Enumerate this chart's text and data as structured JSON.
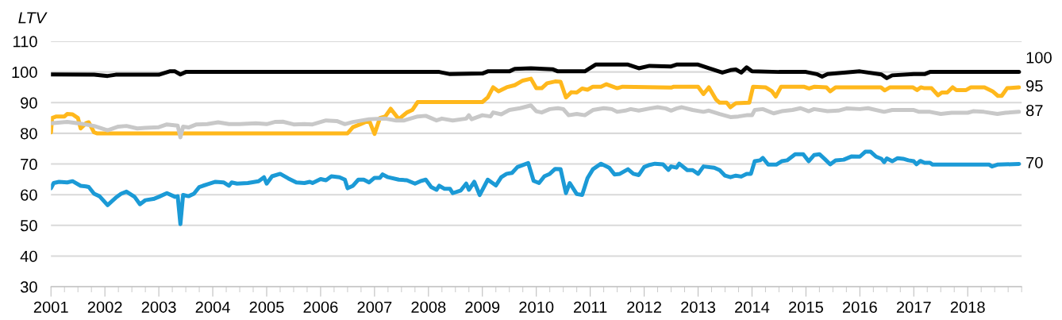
{
  "chart_data": {
    "type": "line",
    "ylabel": "LTV",
    "xlim": [
      2001,
      2019
    ],
    "ylim": [
      30,
      110
    ],
    "yticks": [
      30,
      40,
      50,
      60,
      70,
      80,
      90,
      100,
      110
    ],
    "xticks": [
      2001,
      2002,
      2003,
      2004,
      2005,
      2006,
      2007,
      2008,
      2009,
      2010,
      2011,
      2012,
      2013,
      2014,
      2015,
      2016,
      2017,
      2018,
      {
        "value": 2019,
        "label": null
      },
      {
        "value": 2001.25,
        "label": null
      },
      {
        "value": 2001.5,
        "label": null
      },
      {
        "value": 2001.75,
        "label": null
      },
      {
        "value": 2002.25,
        "label": null
      },
      {
        "value": 2002.5,
        "label": null
      },
      {
        "value": 2002.75,
        "label": null
      },
      {
        "value": 2003.25,
        "label": null
      },
      {
        "value": 2003.5,
        "label": null
      },
      {
        "value": 2003.75,
        "label": null
      },
      {
        "value": 2004.25,
        "label": null
      },
      {
        "value": 2004.5,
        "label": null
      },
      {
        "value": 2004.75,
        "label": null
      },
      {
        "value": 2005.25,
        "label": null
      },
      {
        "value": 2005.5,
        "label": null
      },
      {
        "value": 2005.75,
        "label": null
      },
      {
        "value": 2006.25,
        "label": null
      },
      {
        "value": 2006.5,
        "label": null
      },
      {
        "value": 2006.75,
        "label": null
      },
      {
        "value": 2007.25,
        "label": null
      },
      {
        "value": 2007.5,
        "label": null
      },
      {
        "value": 2007.75,
        "label": null
      },
      {
        "value": 2008.25,
        "label": null
      },
      {
        "value": 2008.5,
        "label": null
      },
      {
        "value": 2008.75,
        "label": null
      },
      {
        "value": 2009.25,
        "label": null
      },
      {
        "value": 2009.5,
        "label": null
      },
      {
        "value": 2009.75,
        "label": null
      },
      {
        "value": 2010.25,
        "label": null
      },
      {
        "value": 2010.5,
        "label": null
      },
      {
        "value": 2010.75,
        "label": null
      },
      {
        "value": 2011.25,
        "label": null
      },
      {
        "value": 2011.5,
        "label": null
      },
      {
        "value": 2011.75,
        "label": null
      },
      {
        "value": 2012.25,
        "label": null
      },
      {
        "value": 2012.5,
        "label": null
      },
      {
        "value": 2012.75,
        "label": null
      },
      {
        "value": 2013.25,
        "label": null
      },
      {
        "value": 2013.5,
        "label": null
      },
      {
        "value": 2013.75,
        "label": null
      },
      {
        "value": 2014.25,
        "label": null
      },
      {
        "value": 2014.5,
        "label": null
      },
      {
        "value": 2014.75,
        "label": null
      },
      {
        "value": 2015.25,
        "label": null
      },
      {
        "value": 2015.5,
        "label": null
      },
      {
        "value": 2015.75,
        "label": null
      },
      {
        "value": 2016.25,
        "label": null
      },
      {
        "value": 2016.5,
        "label": null
      },
      {
        "value": 2016.75,
        "label": null
      },
      {
        "value": 2017.25,
        "label": null
      },
      {
        "value": 2017.5,
        "label": null
      },
      {
        "value": 2017.75,
        "label": null
      },
      {
        "value": 2018.25,
        "label": null
      },
      {
        "value": 2018.5,
        "label": null
      },
      {
        "value": 2018.75,
        "label": null
      }
    ],
    "grid": "y",
    "line_style": "solid",
    "marker": "none",
    "series": [
      {
        "color": "#000000",
        "x": [
          2001.0,
          2001.8,
          2002.05,
          2002.2,
          2003.0,
          2003.2,
          2003.3,
          2003.4,
          2003.5,
          2008.2,
          2008.4,
          2009.0,
          2009.1,
          2009.5,
          2009.6,
          2009.9,
          2010.3,
          2010.4,
          2010.9,
          2011.1,
          2011.7,
          2011.9,
          2012.1,
          2012.5,
          2012.6,
          2013.0,
          2013.2,
          2013.45,
          2013.6,
          2013.7,
          2013.8,
          2013.9,
          2014.0,
          2014.5,
          2015.0,
          2015.2,
          2015.3,
          2015.4,
          2016.0,
          2016.4,
          2016.5,
          2016.6,
          2017.0,
          2017.2,
          2017.3,
          2018.95
        ],
        "values": [
          99.2,
          99.1,
          98.7,
          99.1,
          99.1,
          100.2,
          100.2,
          99.2,
          100,
          100,
          99.3,
          99.5,
          100.2,
          100.2,
          101,
          101.2,
          100.9,
          100.2,
          100.2,
          102.4,
          102.4,
          101.2,
          102,
          101.8,
          102.4,
          102.4,
          101.2,
          99.8,
          100.6,
          100.8,
          99.8,
          101.5,
          100.2,
          100,
          100,
          99.3,
          98.5,
          99.3,
          100.2,
          99.2,
          98,
          98.9,
          99.3,
          99.3,
          100,
          100
        ]
      },
      {
        "color": "#ffb81c",
        "x": [
          2001.0,
          2001.02,
          2001.1,
          2001.25,
          2001.3,
          2001.4,
          2001.5,
          2001.55,
          2001.65,
          2001.7,
          2001.8,
          2001.85,
          2006.5,
          2006.6,
          2006.73,
          2006.9,
          2007.0,
          2007.1,
          2007.2,
          2007.3,
          2007.45,
          2007.6,
          2007.7,
          2007.8,
          2009.0,
          2009.1,
          2009.2,
          2009.3,
          2009.45,
          2009.6,
          2009.75,
          2009.9,
          2010.0,
          2010.1,
          2010.2,
          2010.35,
          2010.45,
          2010.55,
          2010.65,
          2010.75,
          2010.85,
          2010.95,
          2011.05,
          2011.2,
          2011.3,
          2011.45,
          2011.5,
          2011.6,
          2012.5,
          2012.55,
          2013.0,
          2013.1,
          2013.2,
          2013.33,
          2013.4,
          2013.53,
          2013.6,
          2013.7,
          2013.95,
          2014.02,
          2014.25,
          2014.37,
          2014.44,
          2014.54,
          2014.96,
          2015.06,
          2015.16,
          2015.38,
          2015.45,
          2015.55,
          2016.39,
          2016.46,
          2016.56,
          2016.98,
          2017.06,
          2017.13,
          2017.2,
          2017.33,
          2017.45,
          2017.52,
          2017.62,
          2017.72,
          2017.79,
          2017.97,
          2018.06,
          2018.31,
          2018.46,
          2018.56,
          2018.63,
          2018.73,
          2018.95
        ],
        "values": [
          80.3,
          85,
          85.5,
          85.5,
          86.3,
          86.2,
          85,
          81.6,
          83.3,
          83.6,
          80.3,
          80,
          80,
          82,
          82.9,
          84.2,
          79.8,
          85,
          85.5,
          88,
          84.6,
          86.8,
          87.6,
          90.2,
          90.2,
          91.7,
          95,
          93.7,
          95,
          95.7,
          97.2,
          97.8,
          94.7,
          94.7,
          96.3,
          96.9,
          96.8,
          91.7,
          93.4,
          93.3,
          94.6,
          94.2,
          95.2,
          95.2,
          96,
          95,
          94.7,
          95.2,
          94.9,
          95.2,
          95.2,
          92.8,
          95,
          91.1,
          90,
          90,
          88.5,
          89.8,
          90,
          95.2,
          95,
          93.7,
          92,
          95.2,
          95.2,
          94.6,
          95.2,
          95,
          93.7,
          95,
          95,
          94,
          95,
          95,
          94.1,
          95,
          94.7,
          94.7,
          92.4,
          93.3,
          93.3,
          95,
          94.1,
          94.1,
          95,
          95,
          93.7,
          92.2,
          92.2,
          94.7,
          95
        ]
      },
      {
        "color": "#c8c8c8",
        "x": [
          2001.0,
          2001.3,
          2001.5,
          2001.8,
          2002.05,
          2002.25,
          2002.4,
          2002.6,
          2002.75,
          2003.0,
          2003.15,
          2003.35,
          2003.4,
          2003.45,
          2003.55,
          2003.7,
          2003.9,
          2004.1,
          2004.3,
          2004.5,
          2004.8,
          2005.0,
          2005.15,
          2005.3,
          2005.5,
          2005.7,
          2005.85,
          2006.0,
          2006.1,
          2006.3,
          2006.45,
          2006.6,
          2006.9,
          2007.2,
          2007.4,
          2007.55,
          2007.8,
          2007.95,
          2008.15,
          2008.25,
          2008.45,
          2008.7,
          2008.75,
          2008.8,
          2009.0,
          2009.15,
          2009.2,
          2009.35,
          2009.5,
          2009.7,
          2009.9,
          2010.0,
          2010.1,
          2010.25,
          2010.4,
          2010.5,
          2010.6,
          2010.75,
          2010.9,
          2011.05,
          2011.25,
          2011.4,
          2011.5,
          2011.65,
          2011.75,
          2011.9,
          2012.1,
          2012.25,
          2012.4,
          2012.5,
          2012.6,
          2012.7,
          2012.9,
          2013.1,
          2013.2,
          2013.4,
          2013.6,
          2013.75,
          2013.9,
          2014.0,
          2014.05,
          2014.2,
          2014.4,
          2014.55,
          2014.75,
          2014.9,
          2015.05,
          2015.15,
          2015.4,
          2015.6,
          2015.75,
          2016.0,
          2016.15,
          2016.45,
          2016.6,
          2017.0,
          2017.1,
          2017.3,
          2017.5,
          2017.7,
          2018.0,
          2018.1,
          2018.3,
          2018.55,
          2018.7,
          2018.95
        ],
        "values": [
          83.3,
          83.7,
          83.3,
          82.4,
          81,
          82.2,
          82.4,
          81.6,
          81.8,
          82,
          82.9,
          82.5,
          78.7,
          82.2,
          81.9,
          82.9,
          83,
          83.6,
          83,
          83,
          83.3,
          83,
          83.7,
          83.8,
          82.9,
          83,
          82.9,
          83.7,
          84.2,
          84,
          83,
          83.7,
          84.6,
          84.8,
          84.2,
          84.2,
          85.5,
          85.7,
          84.2,
          84.8,
          84.2,
          84.8,
          85.9,
          84.6,
          85.9,
          85.5,
          86.8,
          86.2,
          87.6,
          88.2,
          89.1,
          87.2,
          86.8,
          87.9,
          88.2,
          87.9,
          85.9,
          86.3,
          85.9,
          87.6,
          88.2,
          87.9,
          87,
          87.4,
          87.9,
          87.4,
          88.1,
          88.5,
          88.1,
          87.4,
          88.1,
          88.5,
          87.6,
          87,
          87.4,
          86.3,
          85.3,
          85.5,
          85.9,
          85.9,
          87.6,
          87.9,
          86.5,
          87.2,
          87.6,
          88.2,
          87.2,
          87.9,
          87.2,
          87.4,
          88.1,
          87.9,
          88.2,
          87,
          87.6,
          87.6,
          87,
          87,
          86.3,
          86.7,
          86.7,
          87.2,
          87,
          86.3,
          86.7,
          87
        ]
      },
      {
        "color": "#1b9ad6",
        "x": [
          2001.0,
          2001.05,
          2001.15,
          2001.3,
          2001.4,
          2001.55,
          2001.65,
          2001.7,
          2001.8,
          2001.9,
          2002.05,
          2002.2,
          2002.3,
          2002.4,
          2002.55,
          2002.65,
          2002.75,
          2002.9,
          2003.0,
          2003.15,
          2003.3,
          2003.35,
          2003.4,
          2003.45,
          2003.55,
          2003.65,
          2003.75,
          2003.9,
          2004.05,
          2004.2,
          2004.3,
          2004.35,
          2004.45,
          2004.65,
          2004.85,
          2004.95,
          2005.0,
          2005.1,
          2005.25,
          2005.4,
          2005.55,
          2005.7,
          2005.8,
          2005.85,
          2006.0,
          2006.1,
          2006.2,
          2006.35,
          2006.45,
          2006.5,
          2006.6,
          2006.7,
          2006.8,
          2006.9,
          2007.0,
          2007.1,
          2007.15,
          2007.25,
          2007.45,
          2007.6,
          2007.75,
          2007.85,
          2007.95,
          2008.05,
          2008.15,
          2008.2,
          2008.3,
          2008.4,
          2008.45,
          2008.6,
          2008.7,
          2008.75,
          2008.85,
          2008.95,
          2009.1,
          2009.25,
          2009.35,
          2009.45,
          2009.55,
          2009.65,
          2009.85,
          2009.95,
          2010.05,
          2010.15,
          2010.25,
          2010.35,
          2010.45,
          2010.55,
          2010.62,
          2010.75,
          2010.85,
          2010.95,
          2011.05,
          2011.2,
          2011.35,
          2011.45,
          2011.55,
          2011.7,
          2011.8,
          2011.9,
          2012.0,
          2012.1,
          2012.2,
          2012.35,
          2012.45,
          2012.5,
          2012.6,
          2012.65,
          2012.8,
          2012.9,
          2013.0,
          2013.1,
          2013.3,
          2013.4,
          2013.5,
          2013.6,
          2013.7,
          2013.8,
          2013.9,
          2013.98,
          2014.05,
          2014.15,
          2014.2,
          2014.3,
          2014.45,
          2014.55,
          2014.65,
          2014.8,
          2014.95,
          2015.05,
          2015.15,
          2015.25,
          2015.35,
          2015.45,
          2015.55,
          2015.7,
          2015.85,
          2016.0,
          2016.1,
          2016.2,
          2016.3,
          2016.4,
          2016.45,
          2016.5,
          2016.6,
          2016.7,
          2016.8,
          2016.9,
          2017.0,
          2017.05,
          2017.12,
          2017.2,
          2017.3,
          2017.35,
          2018.4,
          2018.45,
          2018.55,
          2018.95
        ],
        "values": [
          62.1,
          63.8,
          64.2,
          64,
          64.4,
          62.9,
          62.7,
          62.5,
          60.3,
          59.5,
          56.6,
          59,
          60.3,
          61,
          59.3,
          56.9,
          58.2,
          58.6,
          59.3,
          60.5,
          59.3,
          59.5,
          50.4,
          59.9,
          59.5,
          60.3,
          62.5,
          63.4,
          64.2,
          64,
          62.9,
          64,
          63.6,
          63.8,
          64.4,
          65.7,
          63.6,
          66,
          66.8,
          65.3,
          64,
          63.8,
          64.2,
          63.8,
          65.1,
          64.7,
          66,
          65.7,
          64.9,
          62.1,
          62.9,
          64.9,
          64.9,
          64,
          65.5,
          65.5,
          66.6,
          65.7,
          64.9,
          64.7,
          63.6,
          64.4,
          64.9,
          62.5,
          61.6,
          62.9,
          61.9,
          61.9,
          60.5,
          61.4,
          63.6,
          61.6,
          64.2,
          59.9,
          64.9,
          63,
          65.7,
          66.8,
          67.1,
          69,
          70.3,
          64.5,
          63.8,
          66,
          66.8,
          68.4,
          68.3,
          60.5,
          63.8,
          60.2,
          59.9,
          65.4,
          68.3,
          70.1,
          68.8,
          66.6,
          66.8,
          68.3,
          66.8,
          66.4,
          69,
          69.7,
          70.1,
          69.9,
          68.1,
          69.2,
          68.8,
          70.1,
          68,
          68,
          66.8,
          69.2,
          68.8,
          68,
          66.2,
          65.7,
          66.2,
          65.9,
          66.8,
          66.8,
          70.9,
          71.2,
          72,
          69.8,
          69.8,
          70.9,
          71.2,
          73.2,
          73.2,
          70.9,
          72.9,
          73.2,
          71.6,
          69.9,
          71.2,
          71.4,
          72.5,
          72.4,
          74,
          74,
          72.4,
          71.7,
          70.6,
          71.8,
          70.9,
          71.9,
          71.7,
          71.2,
          70.9,
          69.9,
          71,
          70.4,
          70.4,
          69.8,
          69.8,
          69.2,
          69.8,
          70
        ]
      }
    ],
    "annotations": [
      "100",
      "95",
      "87",
      "70"
    ]
  }
}
